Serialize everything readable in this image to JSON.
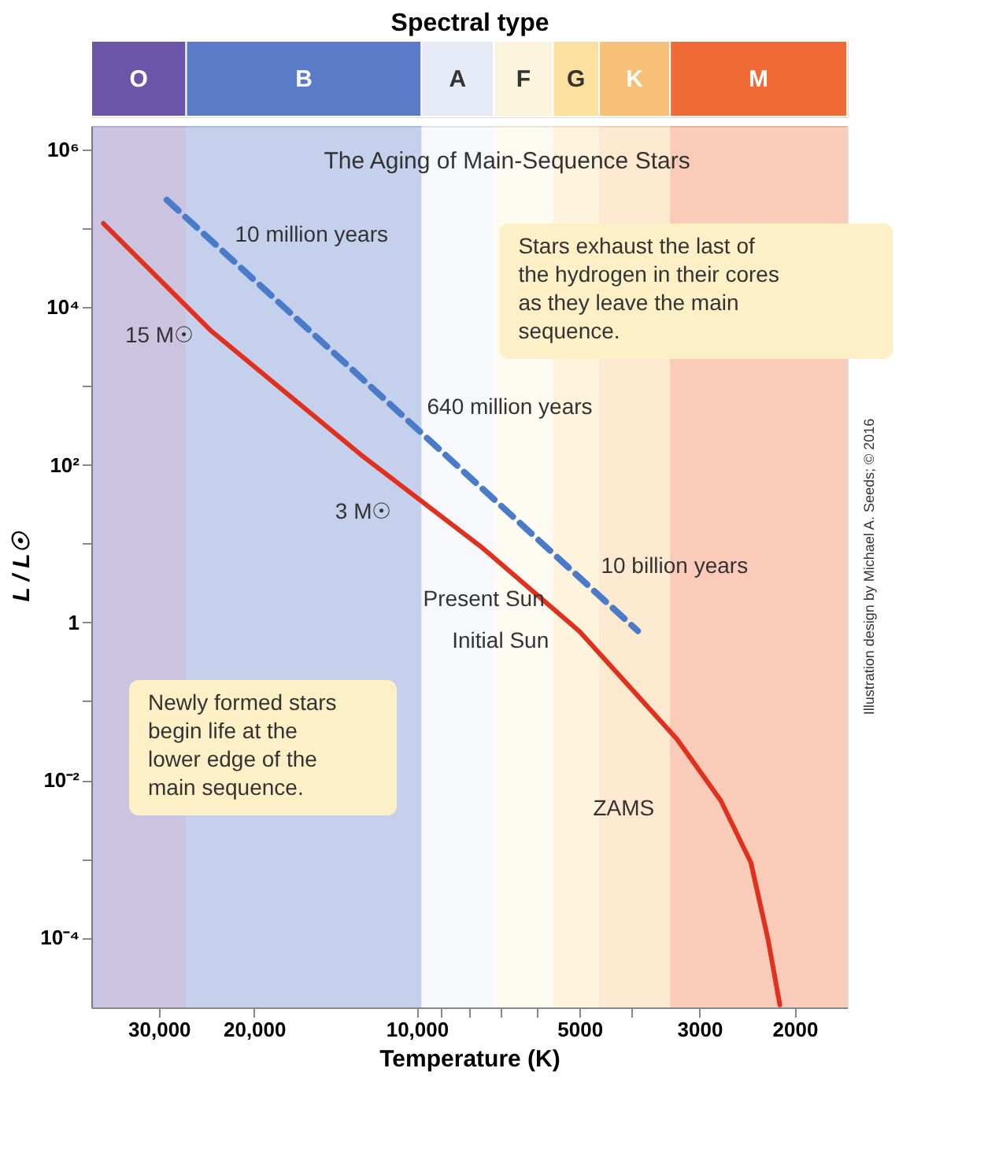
{
  "chart_data": {
    "type": "line",
    "title": "The Aging of Main-Sequence Stars",
    "xlabel": "Temperature (K)",
    "x2label": "Spectral type",
    "ylabel": "L / L☉",
    "log": "xy",
    "xlim": [
      40000,
      1600
    ],
    "ylim": [
      1.3e-05,
      2000000.0
    ],
    "xticks": [
      {
        "value": 30000,
        "label": "30,000"
      },
      {
        "value": 20000,
        "label": "20,000"
      },
      {
        "value": 10000,
        "label": "10,000"
      },
      {
        "value": 9000,
        "label": null
      },
      {
        "value": 8000,
        "label": null
      },
      {
        "value": 7000,
        "label": null
      },
      {
        "value": 6000,
        "label": null
      },
      5000,
      {
        "value": 4000,
        "label": null
      },
      3000,
      2000
    ],
    "yticks": [
      {
        "value": 1000000.0,
        "label": "10⁶"
      },
      {
        "value": 100000.0,
        "label": null
      },
      {
        "value": 10000.0,
        "label": "10⁴"
      },
      {
        "value": 1000.0,
        "label": null
      },
      {
        "value": 100,
        "label": "10²"
      },
      {
        "value": 10,
        "label": null
      },
      1,
      {
        "value": 0.1,
        "label": null
      },
      {
        "value": 0.01,
        "label": "10⁻²"
      },
      {
        "value": 0.001,
        "label": null
      },
      {
        "value": 0.0001,
        "label": "10⁻⁴"
      }
    ],
    "series": [
      {
        "color": "#e0301e",
        "line_style": "solid",
        "x": [
          38000,
          24000,
          12700,
          7600,
          5000,
          3300,
          2740,
          2410,
          2240,
          2130
        ],
        "values": [
          116000,
          5000,
          135,
          9.1,
          0.77,
          0.033,
          0.0055,
          0.0009,
          9.5e-05,
          1.4e-05
        ]
      },
      {
        "color": "#4a7bc8",
        "line_style": "dashed",
        "x": [
          29000,
          3900
        ],
        "values": [
          230000,
          0.78
        ]
      }
    ],
    "bands": [
      {
        "axis": "x",
        "from": 40000,
        "to": 26700,
        "label": "O",
        "color": "#6a55a8"
      },
      {
        "axis": "x",
        "from": 26700,
        "to": 9800,
        "label": "B",
        "color": "#5a7cc8"
      },
      {
        "axis": "x",
        "from": 9800,
        "to": 7200,
        "label": "A",
        "color": "#e6eaf6"
      },
      {
        "axis": "x",
        "from": 7200,
        "to": 5600,
        "label": "F",
        "color": "#fbf4dc"
      },
      {
        "axis": "x",
        "from": 5600,
        "to": 4600,
        "label": "G",
        "color": "#fbe0a0"
      },
      {
        "axis": "x",
        "from": 4600,
        "to": 3400,
        "label": "K",
        "color": "#f8bf78"
      },
      {
        "axis": "x",
        "from": 3400,
        "to": 1600,
        "label": "M",
        "color": "#f06a35"
      }
    ],
    "annotations": [
      {
        "text": "10 million years",
        "x": 23200,
        "y": 57000
      },
      {
        "text": "640 million years",
        "x": 10100,
        "y": 305
      },
      {
        "text": "10 billion years",
        "x": 4880,
        "y": 3.2
      },
      {
        "text": "15 M☉",
        "x": 28700,
        "y": 17000
      },
      {
        "text": "3 M☉",
        "x": 10800,
        "y": 57
      },
      {
        "text": "Present Sun",
        "x": 5500,
        "y": 1.34
      },
      {
        "text": "Initial Sun",
        "x": 5400,
        "y": 1.2
      },
      {
        "text": "ZAMS",
        "x": 3400,
        "y": 0.039
      },
      "Stars exhaust the last of the hydrogen in their cores as they leave the main sequence.",
      "Newly formed stars begin life at the lower edge of the main sequence.",
      "Illustration design by Michael A. Seeds; © 2016"
    ],
    "grid": false,
    "marker": "none"
  }
}
